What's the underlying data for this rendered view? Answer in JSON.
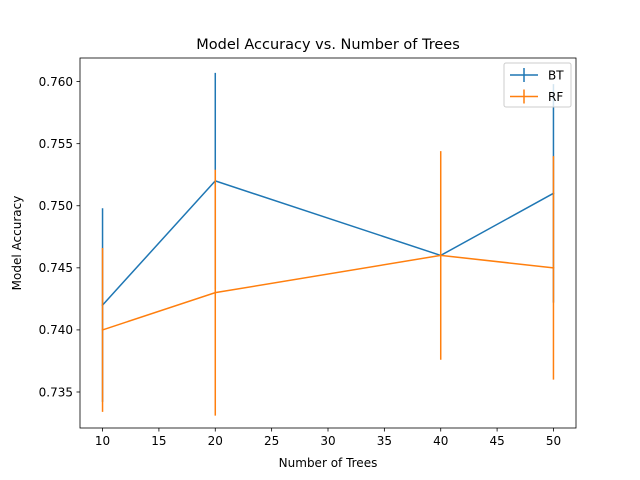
{
  "chart_data": {
    "type": "line",
    "title": "Model Accuracy vs. Number of Trees",
    "xlabel": "Number of Trees",
    "ylabel": "Model Accuracy",
    "x": [
      10,
      20,
      40,
      50
    ],
    "xlim": [
      8,
      52
    ],
    "ylim": [
      0.7321,
      0.7619
    ],
    "xticks": [
      "10",
      "15",
      "20",
      "25",
      "30",
      "35",
      "40",
      "45",
      "50"
    ],
    "yticks": [
      "0.735",
      "0.740",
      "0.745",
      "0.750",
      "0.755",
      "0.760"
    ],
    "grid": false,
    "legend_position": "top-right",
    "error_bars": true,
    "series": [
      {
        "name": "BT",
        "color": "#1f77b4",
        "values": [
          0.742,
          0.752,
          0.746,
          0.751
        ],
        "yerr": [
          0.0078,
          0.0087,
          0.0,
          0.0088
        ]
      },
      {
        "name": "RF",
        "color": "#ff7f0e",
        "values": [
          0.74,
          0.743,
          0.746,
          0.745
        ],
        "yerr": [
          0.0066,
          0.0099,
          0.0084,
          0.009
        ]
      }
    ]
  }
}
